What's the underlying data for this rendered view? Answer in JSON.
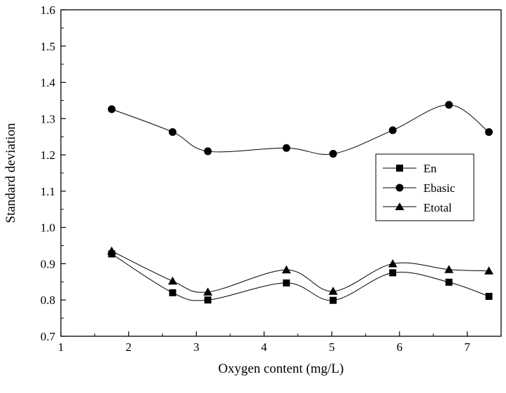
{
  "chart_data": {
    "type": "line",
    "title": "",
    "xlabel": "Oxygen content (mg/L)",
    "ylabel": "Standard deviation",
    "xlim": [
      1,
      7.5
    ],
    "ylim": [
      0.7,
      1.6
    ],
    "xticks": [
      "1",
      "2",
      "3",
      "4",
      "5",
      "6",
      "7"
    ],
    "yticks": [
      "0.7",
      "0.8",
      "0.9",
      "1.0",
      "1.1",
      "1.2",
      "1.3",
      "1.4",
      "1.5",
      "1.6"
    ],
    "grid": false,
    "legend_position": "right",
    "series": [
      {
        "name": "En",
        "marker": "square",
        "x": [
          1.75,
          2.65,
          3.17,
          4.33,
          5.02,
          5.9,
          6.73,
          7.32
        ],
        "y": [
          0.927,
          0.82,
          0.8,
          0.847,
          0.799,
          0.875,
          0.849,
          0.81
        ]
      },
      {
        "name": "Ebasic",
        "marker": "circle",
        "x": [
          1.75,
          2.65,
          3.17,
          4.33,
          5.02,
          5.9,
          6.73,
          7.32
        ],
        "y": [
          1.326,
          1.263,
          1.21,
          1.219,
          1.203,
          1.268,
          1.338,
          1.263
        ]
      },
      {
        "name": "Etotal",
        "marker": "triangle",
        "x": [
          1.75,
          2.65,
          3.17,
          4.33,
          5.02,
          5.9,
          6.73,
          7.32
        ],
        "y": [
          0.935,
          0.852,
          0.822,
          0.883,
          0.824,
          0.9,
          0.884,
          0.88
        ]
      }
    ]
  }
}
